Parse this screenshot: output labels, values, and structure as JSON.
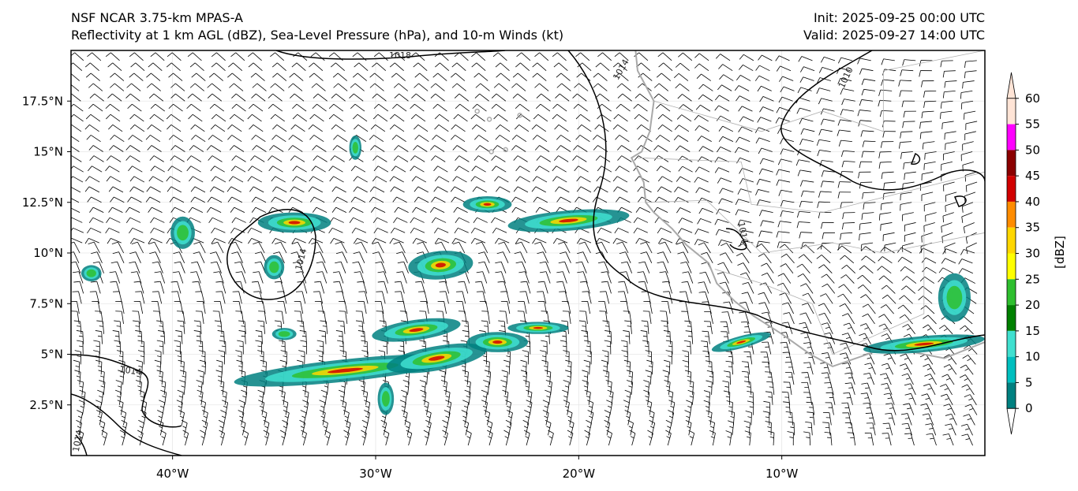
{
  "header": {
    "model": "NSF NCAR 3.75-km MPAS-A",
    "fields": "Reflectivity at 1 km AGL (dBZ), Sea-Level Pressure (hPa), and 10-m Winds (kt)",
    "init": "Init: 2025-09-25 00:00 UTC",
    "valid": "Valid: 2025-09-27 14:00 UTC"
  },
  "map": {
    "lon_range": [
      -45,
      0
    ],
    "lat_range": [
      0,
      20
    ],
    "lon_ticks": [
      "40°W",
      "30°W",
      "20°W",
      "10°W"
    ],
    "lat_ticks": [
      "17.5°N",
      "15°N",
      "12.5°N",
      "10°N",
      "7.5°N",
      "5°N",
      "2.5°N"
    ],
    "isobar_labels": [
      "1018",
      "1014",
      "1010",
      "1014",
      "1014",
      "1014",
      "1014"
    ],
    "coastline_color": "#a9a9a9",
    "isobar_color": "#000000",
    "background": "#ffffff"
  },
  "colorbar": {
    "unit_label": "[dBZ]",
    "levels": [
      "0",
      "5",
      "10",
      "15",
      "20",
      "25",
      "30",
      "35",
      "40",
      "45",
      "50",
      "55",
      "60"
    ],
    "colors": [
      "#ffffff",
      "#008080",
      "#00bfbf",
      "#40e0d0",
      "#008000",
      "#2fbf2f",
      "#ffff00",
      "#ffd700",
      "#ff8c00",
      "#d10000",
      "#8b0000",
      "#ff00ff",
      "#ffe4d6"
    ]
  }
}
